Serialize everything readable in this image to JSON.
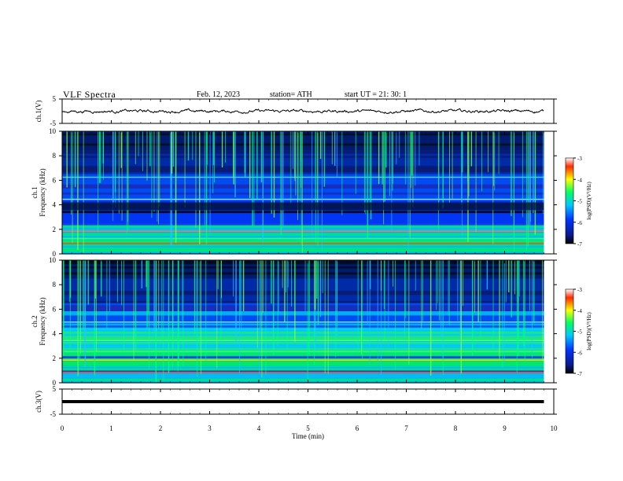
{
  "header": {
    "title": "VLF  Spectra",
    "date": "Feb. 12, 2023",
    "station": "station= ATH",
    "start": "start  UT  =    21: 30: 1"
  },
  "colors": {
    "trace": "#000000",
    "axis": "#000000",
    "spectrogram_colormap": [
      "#000000",
      "#0a1a8a",
      "#0033ff",
      "#00c8ff",
      "#00ff60",
      "#ffff00",
      "#ff2a00",
      "#ffffff"
    ]
  },
  "chart_data": [
    {
      "type": "line",
      "panel": "ch1-waveform",
      "ylabel": "ch.1(V)",
      "ylim": [
        -5,
        5
      ],
      "yticks": [
        5,
        -5
      ],
      "xlim": [
        0,
        10
      ],
      "x_end_min": 9.8,
      "note_level_v": 0
    },
    {
      "type": "heatmap",
      "panel": "ch1-spectrogram",
      "ylabel": "ch.1\nFrequency  (kHz)",
      "ylim": [
        0,
        10
      ],
      "yticks": [
        0,
        2,
        4,
        6,
        8,
        10
      ],
      "xlim": [
        0,
        10
      ],
      "x_end_min": 9.8,
      "colorbar": {
        "label": "log(PSD)(V²/Hz)",
        "range": [
          -7,
          -3
        ],
        "ticks": [
          -3,
          -4,
          -5,
          -6,
          -7
        ]
      }
    },
    {
      "type": "heatmap",
      "panel": "ch2-spectrogram",
      "ylabel": "ch.2\nFrequency  (kHz)",
      "ylim": [
        0,
        10
      ],
      "yticks": [
        0,
        2,
        4,
        6,
        8,
        10
      ],
      "xlim": [
        0,
        10
      ],
      "x_end_min": 9.8,
      "colorbar": {
        "label": "log(PSD)(V²/Hz)",
        "range": [
          -7,
          -3
        ],
        "ticks": [
          -3,
          -4,
          -5,
          -6,
          -7
        ]
      }
    },
    {
      "type": "line",
      "panel": "ch3-waveform",
      "ylabel": "ch.3(V)",
      "ylim": [
        -5,
        5
      ],
      "yticks": [
        5,
        -5
      ],
      "xlim": [
        0,
        10
      ],
      "x_end_min": 9.8,
      "level_v": 0
    }
  ],
  "xaxis": {
    "label": "Time  (min)",
    "ticks": [
      0,
      1,
      2,
      3,
      4,
      5,
      6,
      7,
      8,
      9,
      10
    ]
  }
}
